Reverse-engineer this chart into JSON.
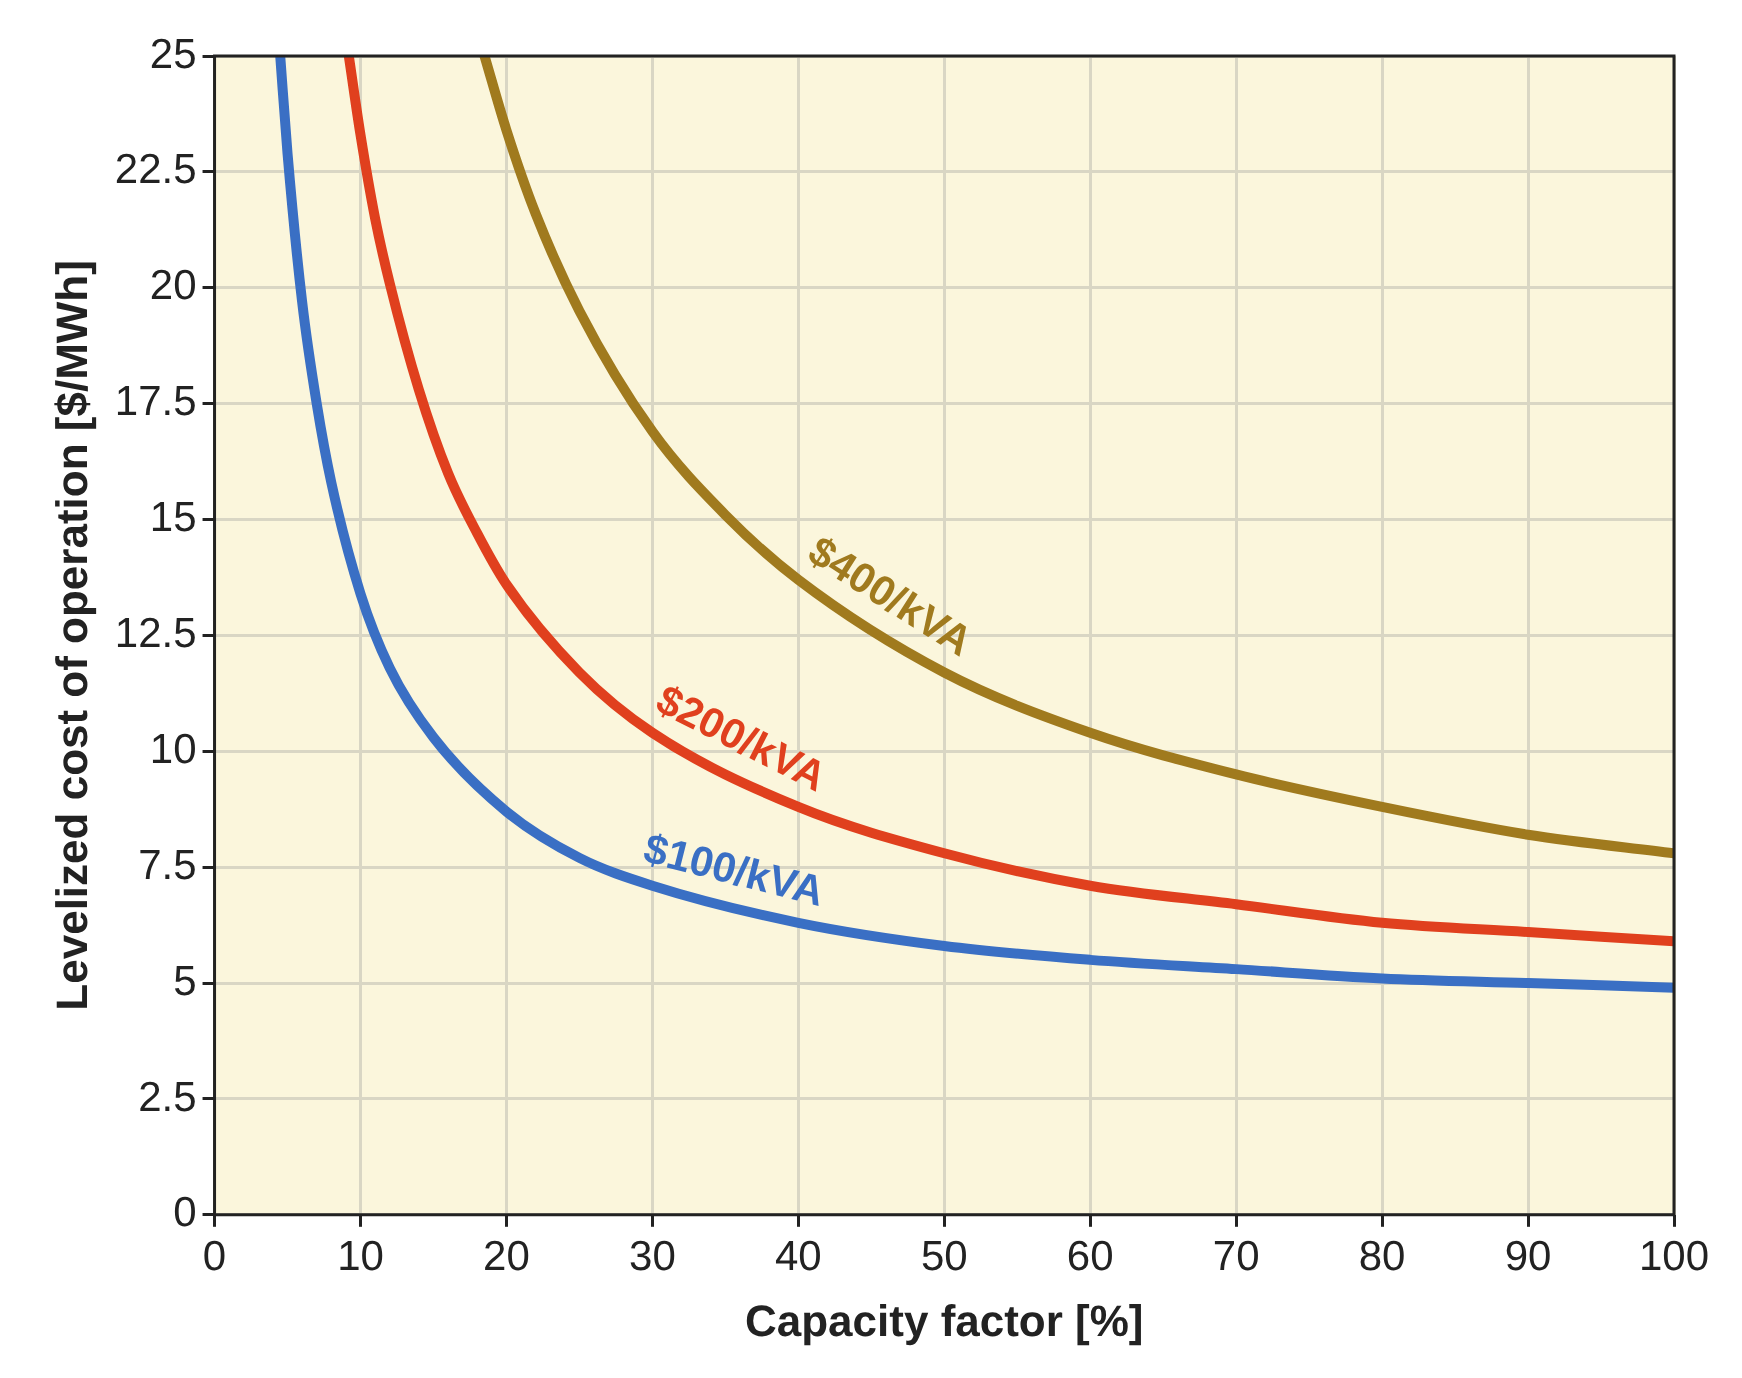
{
  "chart_data": {
    "type": "line",
    "xlabel": "Capacity factor [%]",
    "ylabel": "Levelized cost of operation [$/MWh]",
    "xlim": [
      0,
      100
    ],
    "xticks": [
      0,
      10,
      20,
      30,
      40,
      50,
      60,
      70,
      80,
      90,
      100
    ],
    "ylim": [
      0,
      25
    ],
    "yticks": [
      0,
      2.5,
      5,
      7.5,
      10,
      12.5,
      15,
      17.5,
      20,
      22.5,
      25
    ],
    "grid": true,
    "legend": false,
    "marker": "none",
    "line_style": "solid",
    "series": [
      {
        "name": "$100/kVA",
        "color": "#3a6fc4",
        "x": [
          4.5,
          5,
          6,
          7,
          8,
          10,
          12,
          15,
          20,
          25,
          30,
          40,
          50,
          60,
          70,
          80,
          90,
          100
        ],
        "values": [
          25,
          22.9,
          19.7,
          17.5,
          15.8,
          13.4,
          11.8,
          10.3,
          8.7,
          7.7,
          7.1,
          6.3,
          5.8,
          5.5,
          5.3,
          5.1,
          5.0,
          4.9
        ]
      },
      {
        "name": "$200/kVA",
        "color": "#e0401e",
        "x": [
          9.2,
          10,
          11,
          12,
          14,
          16,
          18,
          20,
          25,
          30,
          40,
          50,
          60,
          70,
          80,
          90,
          100
        ],
        "values": [
          25,
          23.3,
          21.5,
          20.1,
          17.8,
          16.0,
          14.7,
          13.6,
          11.7,
          10.4,
          8.8,
          7.8,
          7.1,
          6.7,
          6.3,
          6.1,
          5.9
        ]
      },
      {
        "name": "$400/kVA",
        "color": "#a07a1e",
        "x": [
          18.5,
          20,
          22,
          25,
          30,
          35,
          40,
          50,
          60,
          70,
          80,
          90,
          100
        ],
        "values": [
          25,
          23.4,
          21.6,
          19.5,
          16.9,
          15.1,
          13.7,
          11.7,
          10.4,
          9.5,
          8.8,
          8.2,
          7.8
        ]
      }
    ]
  }
}
